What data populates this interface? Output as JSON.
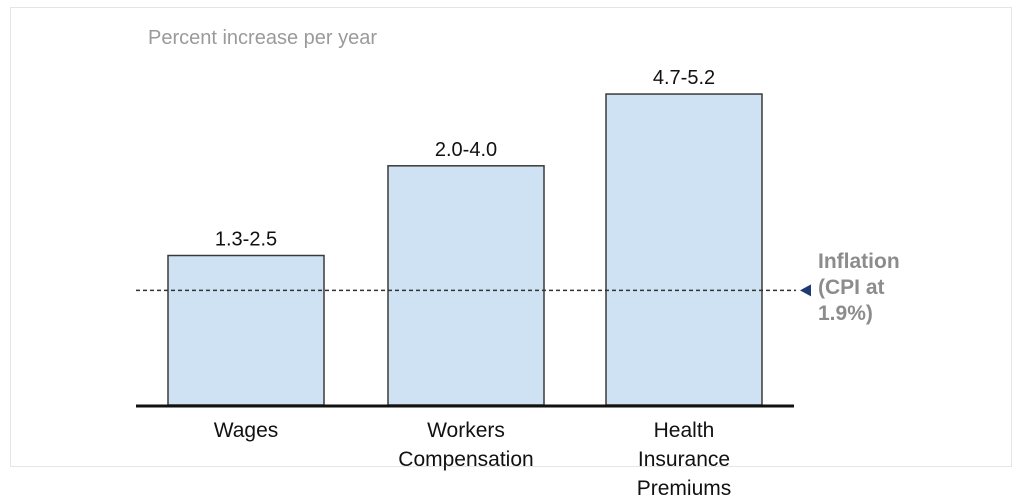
{
  "chart_data": {
    "type": "bar",
    "subtitle": "Percent increase per year",
    "categories": [
      [
        "Wages"
      ],
      [
        "Workers",
        "Compensation"
      ],
      [
        "Health",
        "Insurance",
        "Premiums"
      ]
    ],
    "ranges": [
      [
        1.3,
        2.5
      ],
      [
        2.0,
        4.0
      ],
      [
        4.7,
        5.2
      ]
    ],
    "labels": [
      "1.3-2.5",
      "2.0-4.0",
      "4.7-5.2"
    ],
    "reference_line": {
      "value": 1.9,
      "label_lines": [
        "Inflation",
        "(CPI at",
        "1.9%)"
      ]
    },
    "bar_fill": "#cfe2f3",
    "bar_stroke": "#3a3a3a",
    "marker_color": "#1f3b73",
    "ylim": [
      0,
      6.2
    ],
    "grid": false
  }
}
